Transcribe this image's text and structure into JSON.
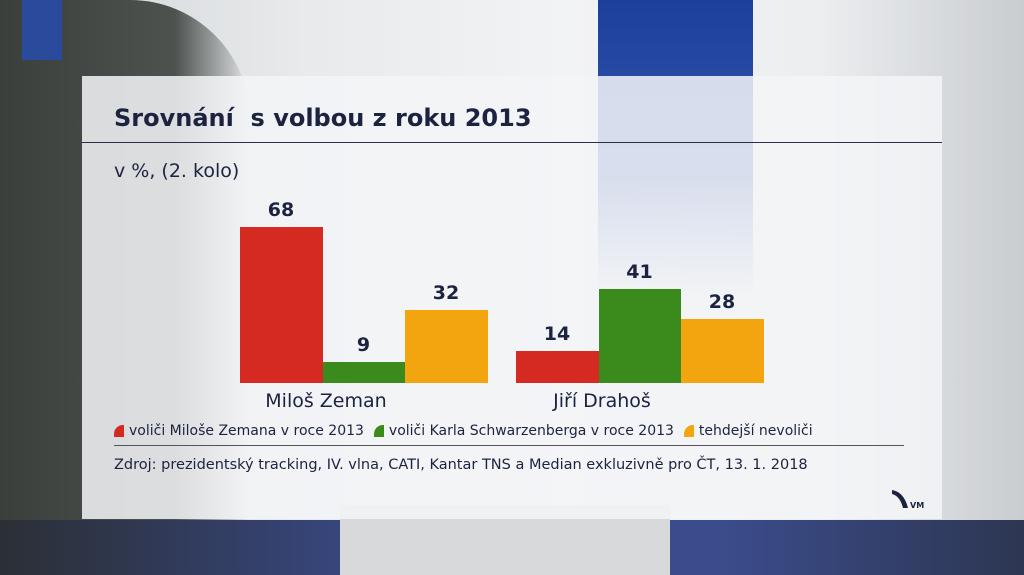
{
  "chart_data": {
    "type": "bar",
    "title": "Srovnání  s volbou z roku 2013",
    "subtitle": "v %, (2. kolo)",
    "categories": [
      "Miloš Zeman",
      "Jiří Drahoš"
    ],
    "series": [
      {
        "name": "voliči Miloše Zemana v roce 2013",
        "color": "#d42a22",
        "values": [
          68,
          14
        ]
      },
      {
        "name": "voliči Karla Schwarzenberga v roce 2013",
        "color": "#3a8a1c",
        "values": [
          9,
          41
        ]
      },
      {
        "name": "tehdejší nevoliči",
        "color": "#f2a50f",
        "values": [
          32,
          28
        ]
      }
    ],
    "ylim": [
      0,
      70
    ],
    "grid": false,
    "legend_position": "bottom",
    "source": "Zdroj: prezidentský tracking, IV. vlna, CATI, Kantar TNS a Median exkluzivně pro ČT, 13. 1. 2018"
  },
  "logo": {
    "text": "VM",
    "icon": "ct-logo-icon"
  }
}
